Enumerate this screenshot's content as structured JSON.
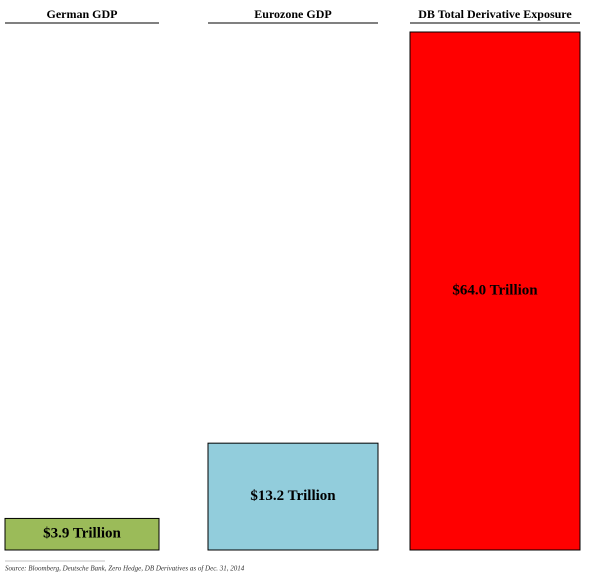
{
  "chart_data": {
    "type": "bar",
    "categories": [
      "German GDP",
      "Eurozone GDP",
      "DB Total Derivative Exposure"
    ],
    "values": [
      3.9,
      13.2,
      64.0
    ],
    "value_labels": [
      "$3.9 Trillion",
      "$13.2 Trillion",
      "$64.0 Trillion"
    ],
    "colors": [
      "#9bbb59",
      "#92cddc",
      "#ff0000"
    ],
    "source": "Source: Bloomberg, Deutsche Bank, Zero Hedge, DB Derivatives as of  Dec. 31, 2014"
  }
}
